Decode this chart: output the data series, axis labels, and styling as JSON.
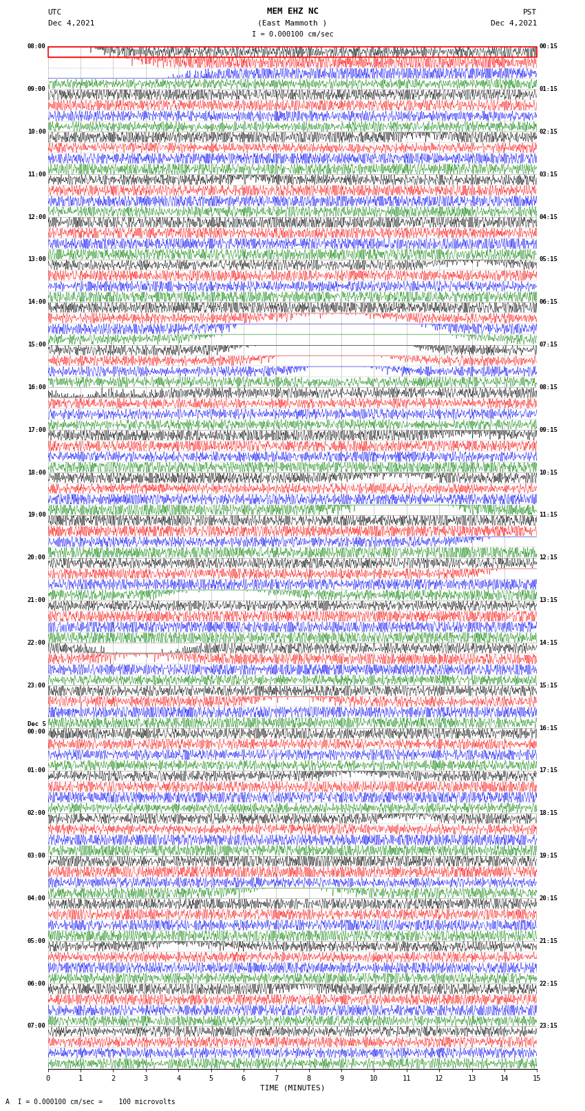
{
  "title_line1": "MEM EHZ NC",
  "title_line2": "(East Mammoth )",
  "scale_text": "I = 0.000100 cm/sec",
  "left_header": "UTC",
  "left_date": "Dec 4,2021",
  "right_header": "PST",
  "right_date": "Dec 4,2021",
  "bottom_label": "TIME (MINUTES)",
  "bottom_note": "A  I = 0.000100 cm/sec =    100 microvolts",
  "utc_labels": [
    "08:00",
    "09:00",
    "10:00",
    "11:00",
    "12:00",
    "13:00",
    "14:00",
    "15:00",
    "16:00",
    "17:00",
    "18:00",
    "19:00",
    "20:00",
    "21:00",
    "22:00",
    "23:00",
    "Dec 5\n00:00",
    "01:00",
    "02:00",
    "03:00",
    "04:00",
    "05:00",
    "06:00",
    "07:00"
  ],
  "pst_labels": [
    "00:15",
    "01:15",
    "02:15",
    "03:15",
    "04:15",
    "05:15",
    "06:15",
    "07:15",
    "08:15",
    "09:15",
    "10:15",
    "11:15",
    "12:15",
    "13:15",
    "14:15",
    "15:15",
    "16:15",
    "17:15",
    "18:15",
    "19:15",
    "20:15",
    "21:15",
    "22:15",
    "23:15"
  ],
  "n_rows": 96,
  "colors_cycle": [
    "black",
    "red",
    "blue",
    "green"
  ],
  "seed": 42,
  "fig_width": 8.5,
  "fig_height": 16.13,
  "bg_color": "white",
  "grid_color": "#aaaaaa",
  "axis_color": "black"
}
